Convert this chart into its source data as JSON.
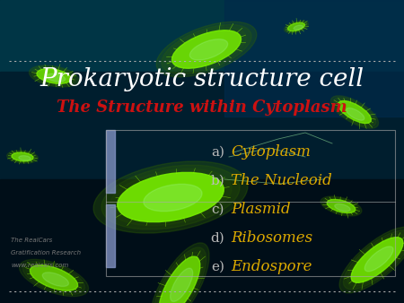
{
  "title": "Prokaryotic structure cell",
  "subtitle": "The Structure within Cytoplasm",
  "items": [
    {
      "label": "Cytoplasm",
      "prefix": "a)"
    },
    {
      "label": "The Nucleoid",
      "prefix": "b)"
    },
    {
      "label": "Plasmid",
      "prefix": "c)"
    },
    {
      "label": "Ribosomes",
      "prefix": "d)"
    },
    {
      "label": "Endospore",
      "prefix": "e)"
    }
  ],
  "bg_color_top": "#003340",
  "bg_color_mid": "#001a26",
  "bg_color_bot": "#000d14",
  "title_color": "#ffffff",
  "subtitle_color": "#cc1111",
  "item_color": "#ddaa00",
  "prefix_color": "#bbbbbb",
  "watermark_color": "#777777",
  "watermark_lines": [
    "The RealCars",
    "Gratification Research",
    "www.realcars.com"
  ],
  "title_fontsize": 20,
  "subtitle_fontsize": 13,
  "item_fontsize": 12,
  "dot_line_color": "#aaaaaa",
  "bar_color": "#8899cc",
  "box_line_color": "#aaaaaa",
  "bacteria_color": "#88ff00",
  "bacteria_glow": "#44aa00"
}
